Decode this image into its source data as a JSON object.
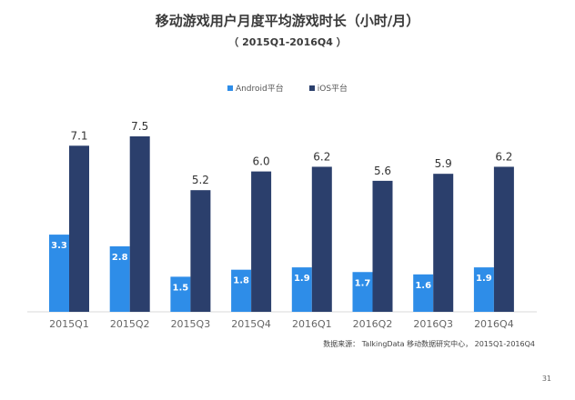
{
  "chart_data": {
    "type": "bar",
    "title": "移动游戏用户月度平均游戏时长（小时/月）",
    "subtitle": "（ 2015Q1-2016Q4 ）",
    "categories": [
      "2015Q1",
      "2015Q2",
      "2015Q3",
      "2015Q4",
      "2016Q1",
      "2016Q2",
      "2016Q3",
      "2016Q4"
    ],
    "series": [
      {
        "name": "Android平台",
        "color": "#2e8de8",
        "values": [
          3.3,
          2.8,
          1.5,
          1.8,
          1.9,
          1.7,
          1.6,
          1.9
        ]
      },
      {
        "name": "iOS平台",
        "color": "#2b3f6c",
        "values": [
          7.1,
          7.5,
          5.2,
          6.0,
          6.2,
          5.6,
          5.9,
          6.2
        ]
      }
    ],
    "ylim": [
      0,
      8
    ],
    "grid": false,
    "legend_position": "top-center"
  },
  "footer": {
    "source": "数据来源：  TalkingData 移动数据研究中心，  2015Q1-2016Q4",
    "page_number": "31"
  }
}
